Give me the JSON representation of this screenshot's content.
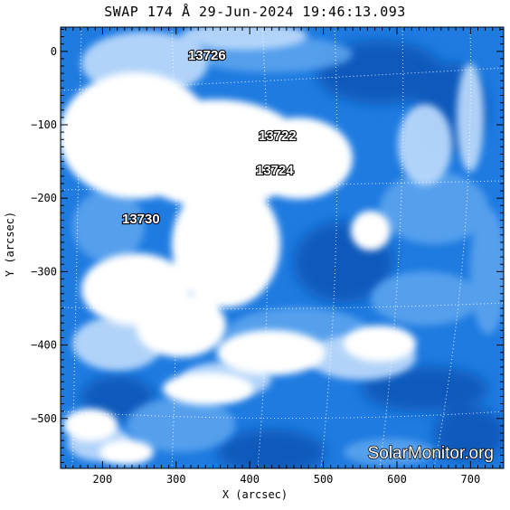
{
  "title": "SWAP 174 Å 29-Jun-2024 19:46:13.093",
  "axes": {
    "xlabel": "X (arcsec)",
    "ylabel": "Y (arcsec)",
    "xticks": [
      "200",
      "300",
      "400",
      "500",
      "600",
      "700"
    ],
    "yticks": [
      "0",
      "−100",
      "−200",
      "−300",
      "−400",
      "−500"
    ],
    "xlim": [
      143,
      745
    ],
    "ylim": [
      -568,
      33
    ]
  },
  "regions": [
    {
      "id": "13726",
      "label": "13726"
    },
    {
      "id": "13722",
      "label": "13722"
    },
    {
      "id": "13724",
      "label": "13724"
    },
    {
      "id": "13730",
      "label": "13730"
    }
  ],
  "watermark": "SolarMonitor.org",
  "colors": {
    "background": "#1f7be0",
    "mid": "#5fa6ef",
    "light": "#b9d8fb",
    "saturated": "#ffffff",
    "dark": "#0a56b8"
  }
}
